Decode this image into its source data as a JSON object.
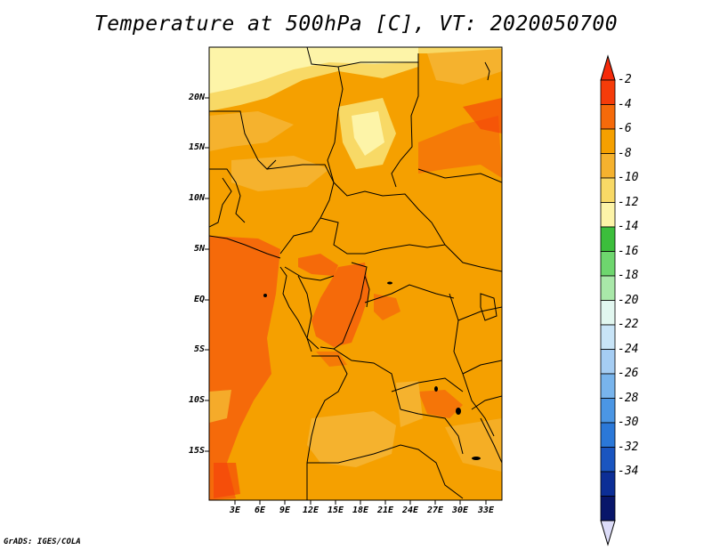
{
  "title": "Temperature at 500hPa [C], VT: 2020050700",
  "credit": "GrADS: IGES/COLA",
  "lat_labels": [
    "20N",
    "15N",
    "10N",
    "5N",
    "EQ",
    "5S",
    "10S",
    "15S"
  ],
  "lon_labels": [
    "3E",
    "6E",
    "9E",
    "12E",
    "15E",
    "18E",
    "21E",
    "24E",
    "27E",
    "30E",
    "33E"
  ],
  "colorbar": {
    "labels": [
      "-2",
      "-4",
      "-6",
      "-8",
      "-10",
      "-12",
      "-14",
      "-16",
      "-18",
      "-20",
      "-22",
      "-24",
      "-26",
      "-28",
      "-30",
      "-32",
      "-34"
    ],
    "colors": [
      "#f53c0a",
      "#f56a0a",
      "#f5a000",
      "#f5b22e",
      "#f8d966",
      "#fdf4a8",
      "#3cbe3c",
      "#6ed66e",
      "#a9e8a9",
      "#e2f7f0",
      "#c8e4f7",
      "#a5cdf3",
      "#78b4ec",
      "#4b96e4",
      "#2b78d8",
      "#1a55c0",
      "#0c2e96",
      "#08166a"
    ],
    "end_colors": {
      "top": "#f52a0a",
      "bottom": "#dcdcf8"
    }
  }
}
